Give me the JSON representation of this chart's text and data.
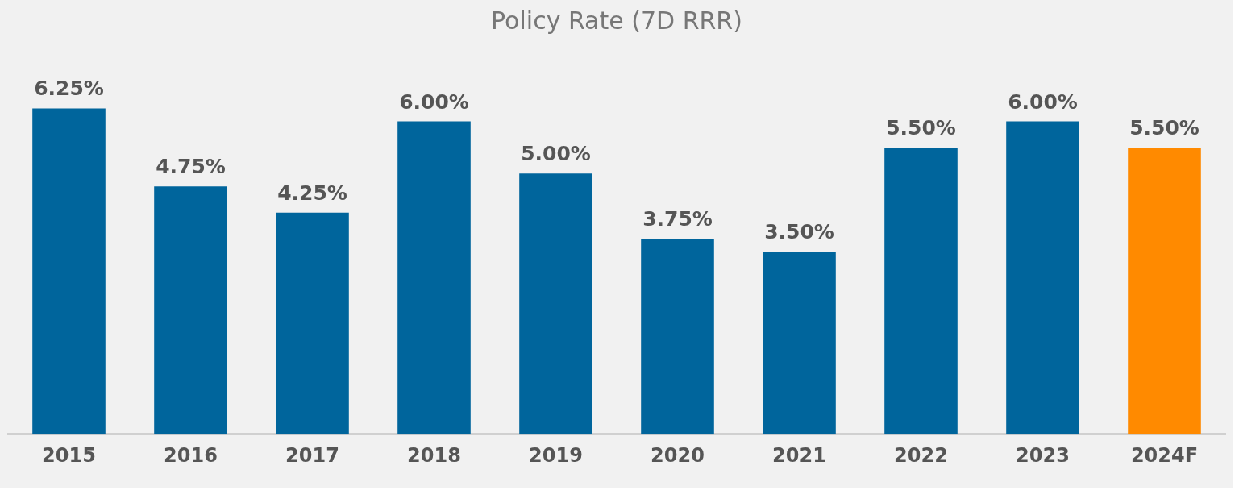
{
  "chart_data": {
    "type": "bar",
    "title": "Policy Rate (7D RRR)",
    "categories": [
      "2015",
      "2016",
      "2017",
      "2018",
      "2019",
      "2020",
      "2021",
      "2022",
      "2023",
      "2024F"
    ],
    "values": [
      6.25,
      4.75,
      4.25,
      6.0,
      5.0,
      3.75,
      3.5,
      5.5,
      6.0,
      5.5
    ],
    "colors": [
      "#00659c",
      "#00659c",
      "#00659c",
      "#00659c",
      "#00659c",
      "#00659c",
      "#00659c",
      "#00659c",
      "#00659c",
      "#ff8a00"
    ],
    "value_labels": [
      "6.25%",
      "4.75%",
      "4.25%",
      "6.00%",
      "5.00%",
      "3.75%",
      "3.50%",
      "5.50%",
      "6.00%",
      "5.50%"
    ],
    "grid": false,
    "legend": false,
    "tick_labels": "x"
  }
}
